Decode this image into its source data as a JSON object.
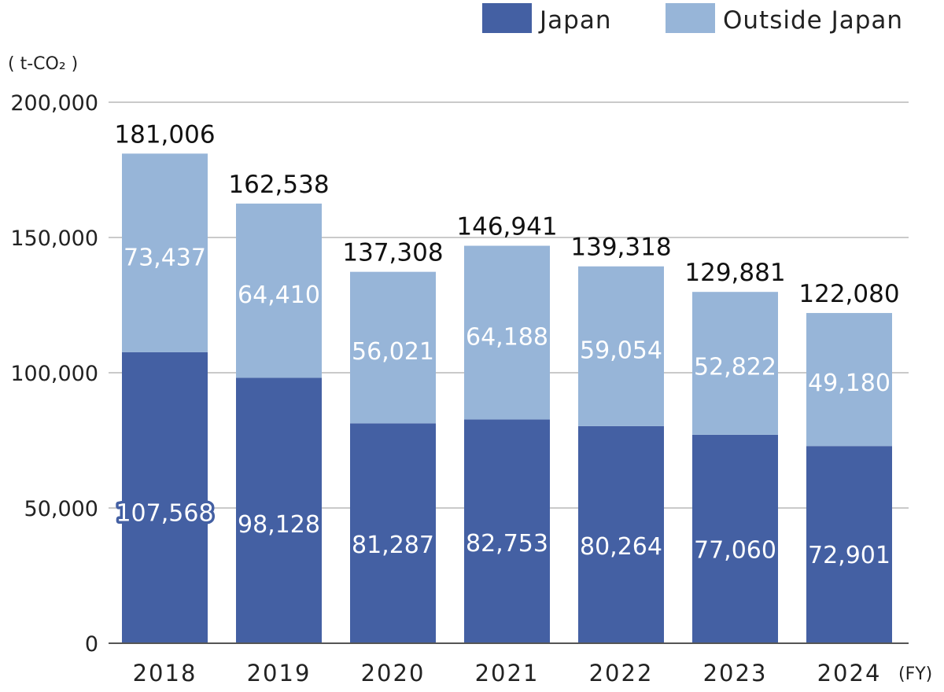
{
  "chart_data": {
    "type": "bar",
    "stacked": true,
    "categories": [
      "2018",
      "2019",
      "2020",
      "2021",
      "2022",
      "2023",
      "2024"
    ],
    "series": [
      {
        "name": "Japan",
        "color": "#4460a3",
        "values": [
          107568,
          98128,
          81287,
          82753,
          80264,
          77060,
          72901
        ]
      },
      {
        "name": "Outside Japan",
        "color": "#97b5d8",
        "values": [
          73437,
          64410,
          56021,
          64188,
          59054,
          52822,
          49180
        ]
      }
    ],
    "totals": [
      181006,
      162538,
      137308,
      146941,
      139318,
      129881,
      122080
    ],
    "yticks": [
      0,
      50000,
      100000,
      150000,
      200000
    ],
    "ylim": [
      0,
      200000
    ],
    "ylabel": "( t-CO₂ )",
    "xlabel": "(FY)",
    "legend_position": "top-right",
    "grid": true
  }
}
